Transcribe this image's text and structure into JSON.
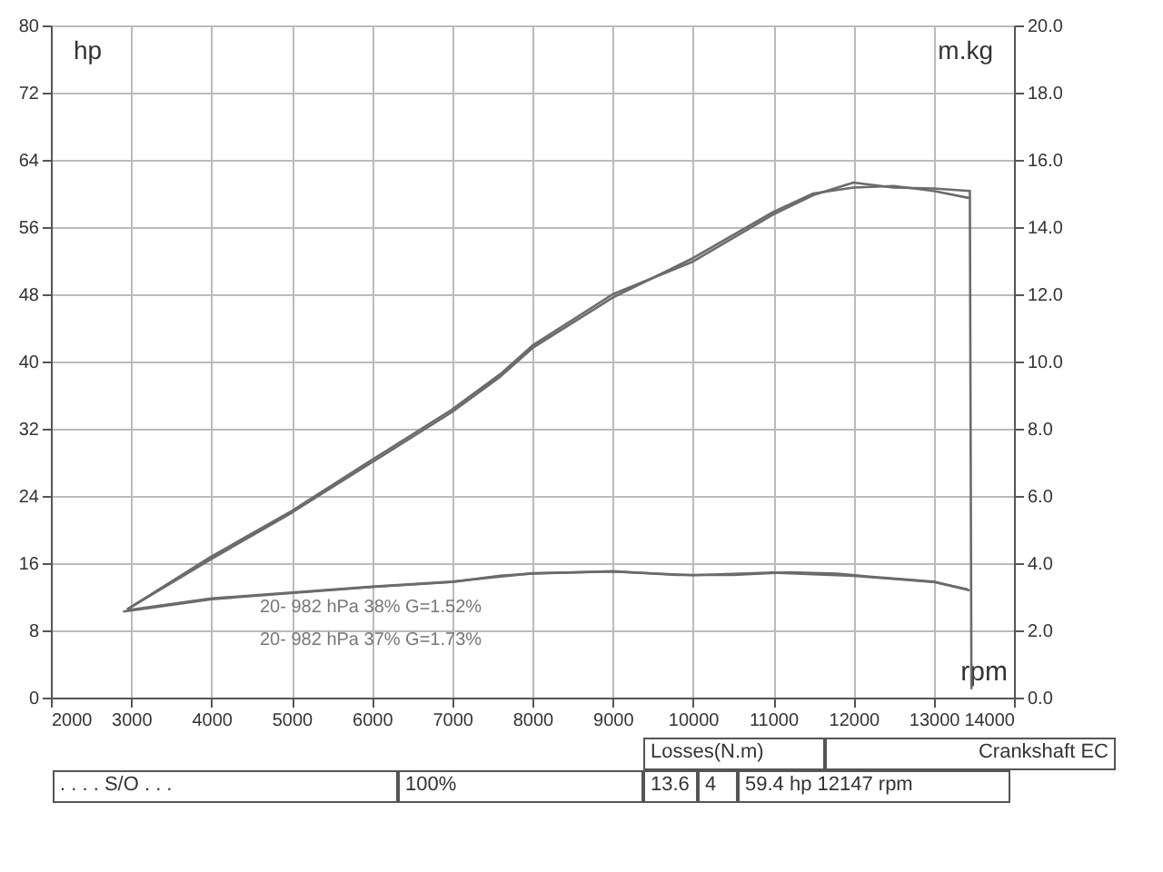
{
  "chart_data": {
    "type": "line",
    "xlabel": "rpm",
    "ylabel": "hp",
    "y2label": "m.kg",
    "xlim": [
      2000,
      14000
    ],
    "xticks": [
      2000,
      3000,
      4000,
      5000,
      6000,
      7000,
      8000,
      9000,
      10000,
      11000,
      12000,
      13000,
      14000
    ],
    "ylim": [
      0,
      80
    ],
    "yticks": [
      0,
      8,
      16,
      24,
      32,
      40,
      48,
      56,
      64,
      72,
      80
    ],
    "y2lim": [
      0,
      20
    ],
    "y2ticks": [
      {
        "value": 0,
        "label": "0.0"
      },
      {
        "value": 2,
        "label": "2.0"
      },
      {
        "value": 4,
        "label": "4.0"
      },
      {
        "value": 6,
        "label": "6.0"
      },
      {
        "value": 8,
        "label": "8.0"
      },
      {
        "value": 10,
        "label": "10.0"
      },
      {
        "value": 12,
        "label": "12.0"
      },
      {
        "value": 14,
        "label": "14.0"
      },
      {
        "value": 16,
        "label": "16.0"
      },
      {
        "value": 18,
        "label": "18.0"
      },
      {
        "value": 20,
        "label": "20.0"
      }
    ],
    "grid": true,
    "legend": false,
    "series": [
      {
        "color": "#6b6b6b",
        "x": [
          2950,
          4000,
          5000,
          6000,
          7000,
          7600,
          8000,
          9000,
          10000,
          11000,
          11500,
          12000,
          12500,
          13000,
          13450,
          13470
        ],
        "values": [
          10.5,
          16.8,
          22.2,
          28.3,
          34.3,
          38.5,
          41.9,
          48.0,
          51.9,
          57.5,
          59.8,
          61.3,
          60.7,
          60.6,
          60.3,
          1
        ]
      },
      {
        "color": "#6b6b6b",
        "x": [
          2950,
          4000,
          5000,
          6000,
          7000,
          7600,
          8000,
          9000,
          10000,
          11000,
          11500,
          12000,
          12500,
          13000,
          13420,
          13440
        ],
        "values": [
          10.5,
          16.5,
          22.0,
          28.0,
          34.0,
          38.2,
          41.6,
          47.6,
          52.3,
          57.8,
          60.0,
          60.7,
          60.9,
          60.3,
          59.5,
          59.5
        ]
      },
      {
        "axis": "y2",
        "color": "#6b6b6b",
        "x": [
          2900,
          3240,
          4000,
          6000,
          7000,
          7600,
          8000,
          9000,
          9800,
          10500,
          11200,
          11800,
          12200,
          13000,
          13450
        ],
        "values": [
          2.56,
          2.67,
          2.93,
          3.29,
          3.44,
          3.63,
          3.69,
          3.76,
          3.65,
          3.65,
          3.73,
          3.69,
          3.6,
          3.45,
          3.19
        ]
      },
      {
        "axis": "y2",
        "color": "#6b6b6b",
        "x": [
          2950,
          4000,
          6000,
          7000,
          8000,
          9000,
          10000,
          11000,
          12000,
          13000,
          13420
        ],
        "values": [
          2.6,
          2.95,
          3.3,
          3.45,
          3.7,
          3.75,
          3.64,
          3.72,
          3.62,
          3.44,
          3.22
        ]
      }
    ],
    "annotations": [
      "20-  982 hPa  38%   G=1.52%",
      "20-  982 hPa  37%   G=1.73%",
      "Losses(N.m)",
      "Crankshaft EC",
      ". . . . S/O . . .",
      "100%",
      "13.6",
      "4",
      "59.4 hp 12147 rpm"
    ]
  }
}
